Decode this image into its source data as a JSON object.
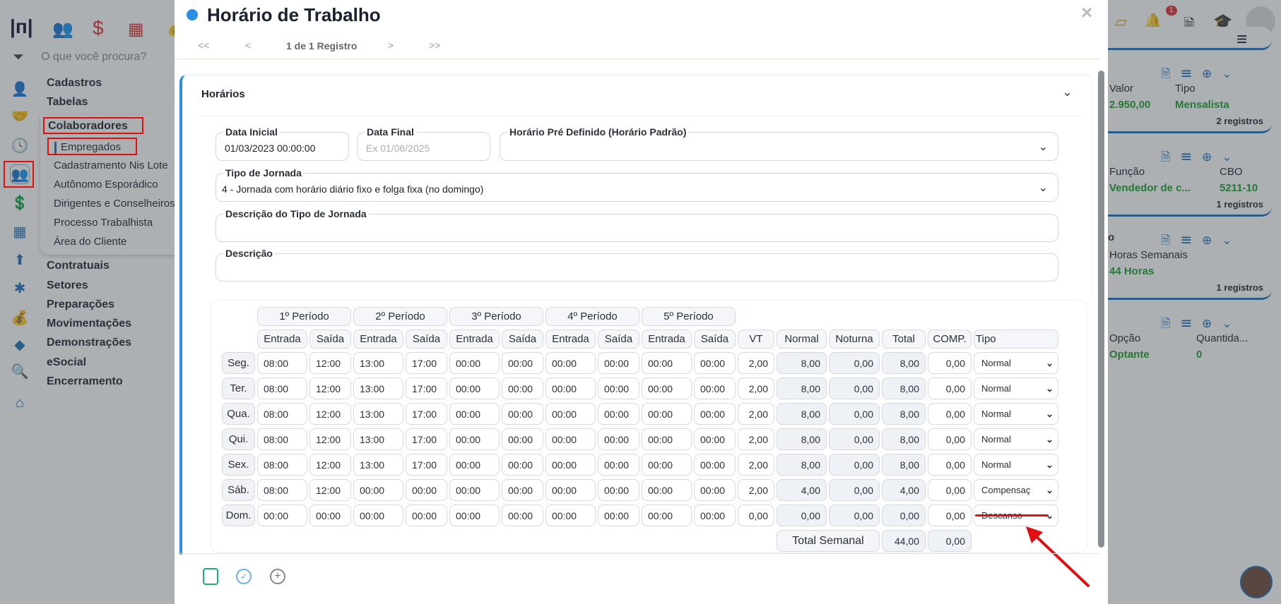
{
  "app": {
    "search_placeholder": "O que você procura?"
  },
  "sidebar": {
    "top_icons": [
      "people-icon",
      "dollar-icon",
      "calculator-icon",
      "money-bag-icon"
    ],
    "menu": [
      {
        "label": "Cadastros"
      },
      {
        "label": "Tabelas"
      },
      {
        "label": "Colaboradores",
        "highlighted": true
      },
      {
        "label": "Contratuais"
      },
      {
        "label": "Setores"
      },
      {
        "label": "Preparações"
      },
      {
        "label": "Movimentações"
      },
      {
        "label": "Demonstrações"
      },
      {
        "label": "eSocial"
      },
      {
        "label": "Encerramento"
      }
    ],
    "submenu": [
      {
        "label": "Empregados",
        "active": true
      },
      {
        "label": "Cadastramento Nis Lote"
      },
      {
        "label": "Autônomo Esporádico"
      },
      {
        "label": "Dirigentes e Conselheiros"
      },
      {
        "label": "Processo Trabalhista"
      },
      {
        "label": "Área do Cliente"
      }
    ]
  },
  "modal": {
    "title": "Horário de Trabalho",
    "pager": {
      "first": "<<",
      "prev": "<",
      "text": "1 de 1 Registro",
      "next": ">",
      "last": ">>"
    },
    "section_title": "Horários",
    "fields": {
      "data_inicial": {
        "label": "Data Inicial",
        "value": "01/03/2023 00:00:00"
      },
      "data_final": {
        "label": "Data Final",
        "placeholder": "Ex 01/06/2025"
      },
      "horario_pre": {
        "label": "Horário Pré Definido (Horário Padrão)",
        "value": ""
      },
      "tipo_jornada": {
        "label": "Tipo de Jornada",
        "value": "4 - Jornada com horário diário fixo e folga fixa (no domingo)"
      },
      "desc_tipo": {
        "label": "Descrição do Tipo de Jornada",
        "value": ""
      },
      "descricao": {
        "label": "Descrição",
        "value": ""
      }
    },
    "table": {
      "periods": [
        "1º Período",
        "2º Período",
        "3º Período",
        "4º Período",
        "5º Período"
      ],
      "sub": {
        "entrada": "Entrada",
        "saida": "Saída"
      },
      "cols": [
        "VT",
        "Normal",
        "Noturna",
        "Total",
        "COMP.",
        "Tipo"
      ],
      "rows": [
        {
          "day": "Seg.",
          "times": [
            "08:00",
            "12:00",
            "13:00",
            "17:00",
            "00:00",
            "00:00",
            "00:00",
            "00:00",
            "00:00",
            "00:00"
          ],
          "vt": "2,00",
          "normal": "8,00",
          "noturna": "0,00",
          "total": "8,00",
          "comp": "0,00",
          "tipo": "Normal"
        },
        {
          "day": "Ter.",
          "times": [
            "08:00",
            "12:00",
            "13:00",
            "17:00",
            "00:00",
            "00:00",
            "00:00",
            "00:00",
            "00:00",
            "00:00"
          ],
          "vt": "2,00",
          "normal": "8,00",
          "noturna": "0,00",
          "total": "8,00",
          "comp": "0,00",
          "tipo": "Normal"
        },
        {
          "day": "Qua.",
          "times": [
            "08:00",
            "12:00",
            "13:00",
            "17:00",
            "00:00",
            "00:00",
            "00:00",
            "00:00",
            "00:00",
            "00:00"
          ],
          "vt": "2,00",
          "normal": "8,00",
          "noturna": "0,00",
          "total": "8,00",
          "comp": "0,00",
          "tipo": "Normal"
        },
        {
          "day": "Qui.",
          "times": [
            "08:00",
            "12:00",
            "13:00",
            "17:00",
            "00:00",
            "00:00",
            "00:00",
            "00:00",
            "00:00",
            "00:00"
          ],
          "vt": "2,00",
          "normal": "8,00",
          "noturna": "0,00",
          "total": "8,00",
          "comp": "0,00",
          "tipo": "Normal"
        },
        {
          "day": "Sex.",
          "times": [
            "08:00",
            "12:00",
            "13:00",
            "17:00",
            "00:00",
            "00:00",
            "00:00",
            "00:00",
            "00:00",
            "00:00"
          ],
          "vt": "2,00",
          "normal": "8,00",
          "noturna": "0,00",
          "total": "8,00",
          "comp": "0,00",
          "tipo": "Normal"
        },
        {
          "day": "Sáb.",
          "times": [
            "08:00",
            "12:00",
            "00:00",
            "00:00",
            "00:00",
            "00:00",
            "00:00",
            "00:00",
            "00:00",
            "00:00"
          ],
          "vt": "2,00",
          "normal": "4,00",
          "noturna": "0,00",
          "total": "4,00",
          "comp": "0,00",
          "tipo": "Compensaç"
        },
        {
          "day": "Dom.",
          "times": [
            "00:00",
            "00:00",
            "00:00",
            "00:00",
            "00:00",
            "00:00",
            "00:00",
            "00:00",
            "00:00",
            "00:00"
          ],
          "vt": "0,00",
          "normal": "0,00",
          "noturna": "0,00",
          "total": "0,00",
          "comp": "0,00",
          "tipo": "Descanso"
        }
      ],
      "total_label": "Total Semanal",
      "total_value": "44,00",
      "total_comp": "0,00"
    },
    "footer_icons": [
      "save-icon",
      "check-circle-icon",
      "plus-circle-icon"
    ]
  },
  "right": {
    "notifications_count": "1",
    "cards": [
      {
        "headers": [
          "Valor",
          "Tipo"
        ],
        "values": [
          "2.950,00",
          "Mensalista"
        ],
        "count": "2 registros"
      },
      {
        "headers": [
          "Função",
          "CBO"
        ],
        "values": [
          "Vendedor de c...",
          "5211-10"
        ],
        "count": "1 registros"
      },
      {
        "title_fragment": "o",
        "headers": [
          "Horas Semanais"
        ],
        "values": [
          "44 Horas"
        ],
        "count": "1 registros"
      },
      {
        "headers": [
          "Opção",
          "Quantida..."
        ],
        "values": [
          "Optante",
          "0"
        ]
      }
    ]
  },
  "colors": {
    "accent": "#1e6fb8",
    "annotation": "#e01010",
    "green": "#1a9e2a"
  }
}
